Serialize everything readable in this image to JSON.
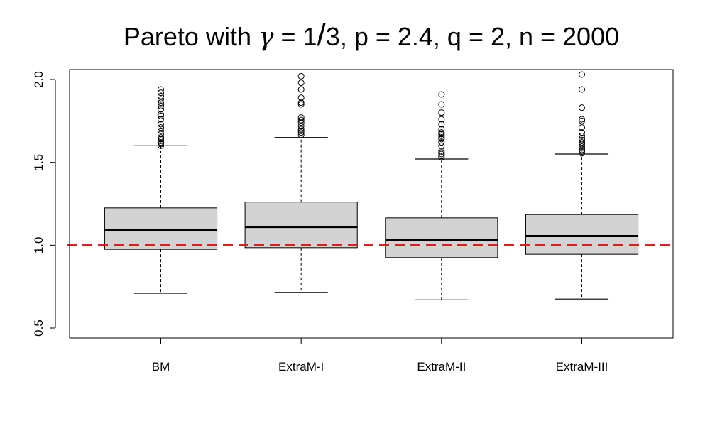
{
  "chart_data": {
    "type": "boxplot",
    "title": {
      "prefix": "Pareto with ",
      "gamma_symbol": "γ",
      "gamma_value": "1",
      "gamma_slash": "/",
      "gamma_den": "3",
      "rest": ", p = 2.4, q = 2, n = 2000"
    },
    "xlabel": "",
    "ylabel": "",
    "ylim": [
      0.44,
      2.06
    ],
    "yticks": [
      0.5,
      1.0,
      1.5,
      2.0
    ],
    "ytick_labels": [
      "0.5",
      "1.0",
      "1.5",
      "2.0"
    ],
    "grid": false,
    "reference_line": {
      "y": 1.0,
      "color": "#e41a1c",
      "style": "dashed"
    },
    "box_fill": "#d3d3d3",
    "categories": [
      "BM",
      "ExtraM-I",
      "ExtraM-II",
      "ExtraM-III"
    ],
    "boxes": [
      {
        "name": "BM",
        "whisker_low": 0.71,
        "q1": 0.975,
        "median": 1.09,
        "q3": 1.225,
        "whisker_high": 1.6,
        "outliers": [
          1.6,
          1.61,
          1.62,
          1.63,
          1.64,
          1.65,
          1.67,
          1.69,
          1.71,
          1.73,
          1.76,
          1.78,
          1.79,
          1.82,
          1.84,
          1.85,
          1.86,
          1.88,
          1.9,
          1.92,
          1.94
        ]
      },
      {
        "name": "ExtraM-I",
        "whisker_low": 0.715,
        "q1": 0.985,
        "median": 1.11,
        "q3": 1.26,
        "whisker_high": 1.65,
        "outliers": [
          1.665,
          1.68,
          1.69,
          1.7,
          1.72,
          1.74,
          1.755,
          1.77,
          1.85,
          1.86,
          1.89,
          1.94,
          1.98,
          2.02
        ]
      },
      {
        "name": "ExtraM-II",
        "whisker_low": 0.67,
        "q1": 0.925,
        "median": 1.03,
        "q3": 1.165,
        "whisker_high": 1.52,
        "outliers": [
          1.53,
          1.54,
          1.55,
          1.56,
          1.57,
          1.6,
          1.62,
          1.64,
          1.65,
          1.66,
          1.67,
          1.68,
          1.7,
          1.73,
          1.76,
          1.8,
          1.85,
          1.91
        ]
      },
      {
        "name": "ExtraM-III",
        "whisker_low": 0.675,
        "q1": 0.945,
        "median": 1.055,
        "q3": 1.185,
        "whisker_high": 1.55,
        "outliers": [
          1.555,
          1.565,
          1.575,
          1.585,
          1.595,
          1.61,
          1.62,
          1.635,
          1.645,
          1.66,
          1.68,
          1.71,
          1.75,
          1.76,
          1.83,
          1.94,
          2.03
        ]
      }
    ]
  }
}
